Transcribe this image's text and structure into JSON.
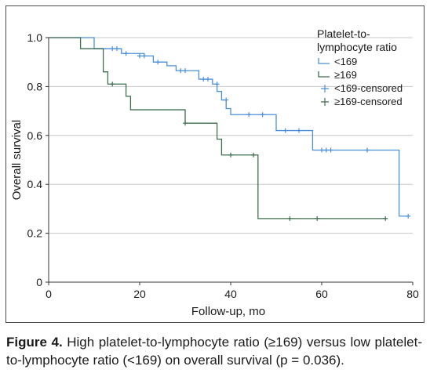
{
  "chart_data": {
    "type": "line",
    "xlabel": "Follow-up, mo",
    "ylabel": "Overall survival",
    "xlim": [
      0,
      80
    ],
    "ylim": [
      0,
      1.0
    ],
    "xticks": [
      0,
      20,
      40,
      60,
      80
    ],
    "yticks": [
      0,
      0.2,
      0.4,
      0.6,
      0.8,
      1.0
    ],
    "ytick_labels": [
      "0",
      "0.2",
      "0.4",
      "0.6",
      "0.8",
      "1.0"
    ],
    "grid": "horizontal",
    "legend": {
      "title_lines": [
        "Platelet-to-",
        "lymphocyte ratio"
      ],
      "placement": "top-right",
      "entries": [
        "<169",
        "≥169",
        "<169-censored",
        "≥169-censored"
      ]
    },
    "series": [
      {
        "name": "<169",
        "color": "#4a90d9",
        "steps": [
          [
            0,
            1.0
          ],
          [
            10,
            0.955
          ],
          [
            16,
            0.935
          ],
          [
            21,
            0.925
          ],
          [
            23,
            0.9
          ],
          [
            26,
            0.885
          ],
          [
            28,
            0.865
          ],
          [
            33,
            0.83
          ],
          [
            36,
            0.81
          ],
          [
            37,
            0.78
          ],
          [
            38,
            0.745
          ],
          [
            39,
            0.71
          ],
          [
            40,
            0.685
          ],
          [
            50,
            0.62
          ],
          [
            58,
            0.54
          ],
          [
            77,
            0.27
          ],
          [
            79,
            0.27
          ]
        ],
        "censored": [
          [
            14,
            0.955
          ],
          [
            15,
            0.955
          ],
          [
            17,
            0.935
          ],
          [
            20,
            0.925
          ],
          [
            21,
            0.925
          ],
          [
            24,
            0.9
          ],
          [
            29,
            0.865
          ],
          [
            30,
            0.865
          ],
          [
            34,
            0.83
          ],
          [
            35,
            0.83
          ],
          [
            37,
            0.81
          ],
          [
            39,
            0.745
          ],
          [
            44,
            0.685
          ],
          [
            47,
            0.685
          ],
          [
            52,
            0.62
          ],
          [
            55,
            0.62
          ],
          [
            60,
            0.54
          ],
          [
            61,
            0.54
          ],
          [
            62,
            0.54
          ],
          [
            70,
            0.54
          ],
          [
            79,
            0.27
          ]
        ]
      },
      {
        "name": "≥169",
        "color": "#3d6e4e",
        "steps": [
          [
            0,
            1.0
          ],
          [
            7,
            0.955
          ],
          [
            12,
            0.86
          ],
          [
            13,
            0.81
          ],
          [
            17,
            0.76
          ],
          [
            18,
            0.705
          ],
          [
            30,
            0.65
          ],
          [
            37,
            0.585
          ],
          [
            38,
            0.52
          ],
          [
            46,
            0.26
          ],
          [
            74,
            0.26
          ]
        ],
        "censored": [
          [
            14,
            0.81
          ],
          [
            30,
            0.65
          ],
          [
            40,
            0.52
          ],
          [
            45,
            0.52
          ],
          [
            53,
            0.26
          ],
          [
            59,
            0.26
          ],
          [
            74,
            0.26
          ]
        ]
      }
    ]
  },
  "caption": {
    "label": "Figure 4.",
    "text": "High platelet-to-lymphocyte ratio (≥169) versus low platelet-to-lymphocyte ratio (<169) on overall survival (p = 0.036)."
  }
}
